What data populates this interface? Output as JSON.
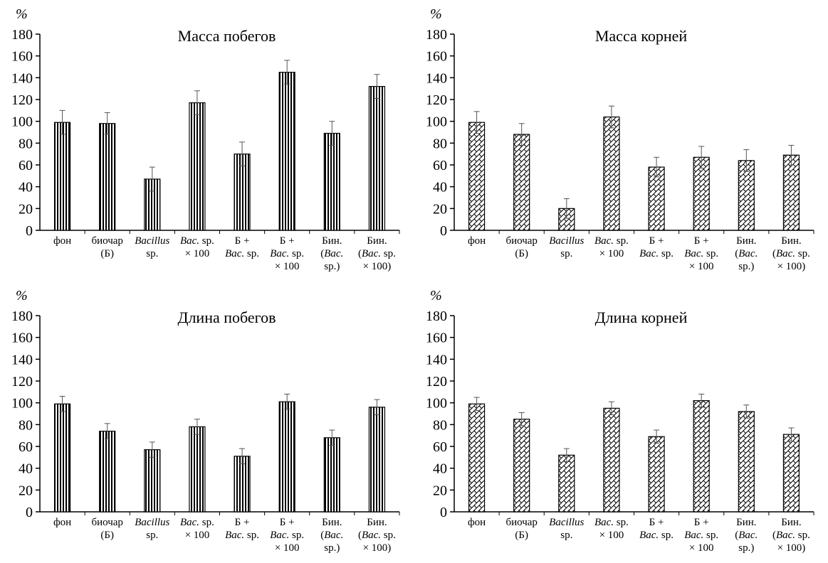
{
  "chart_data": [
    {
      "type": "bar",
      "title": "Масса побегов",
      "y_unit_label": "%",
      "ylim": [
        0,
        180
      ],
      "yticks": [
        0,
        20,
        40,
        60,
        80,
        100,
        120,
        140,
        160,
        180
      ],
      "categories": [
        [
          "фон"
        ],
        [
          "биочар",
          "(Б)"
        ],
        [
          "Bacillus",
          "sp."
        ],
        [
          "Bac. sp.",
          "× 100"
        ],
        [
          "Б +",
          "Bac. sp."
        ],
        [
          "Б +",
          "Bac. sp.",
          "× 100"
        ],
        [
          "Бин.",
          "(Bac.",
          "sp.)"
        ],
        [
          "Бин.",
          "(Bac. sp.",
          "× 100)"
        ]
      ],
      "values": [
        99,
        98,
        47,
        117,
        70,
        145,
        89,
        132
      ],
      "errors": [
        11,
        10,
        11,
        11,
        11,
        11,
        11,
        11
      ],
      "pattern": "vertical-stripes"
    },
    {
      "type": "bar",
      "title": "Масса корней",
      "y_unit_label": "%",
      "ylim": [
        0,
        180
      ],
      "yticks": [
        0,
        20,
        40,
        60,
        80,
        100,
        120,
        140,
        160,
        180
      ],
      "categories": [
        [
          "фон"
        ],
        [
          "биочар",
          "(Б)"
        ],
        [
          "Bacillus",
          "sp."
        ],
        [
          "Bac. sp.",
          "× 100"
        ],
        [
          "Б +",
          "Bac. sp."
        ],
        [
          "Б +",
          "Bac. sp.",
          "× 100"
        ],
        [
          "Бин.",
          "(Bac.",
          "sp.)"
        ],
        [
          "Бин.",
          "(Bac. sp.",
          "× 100)"
        ]
      ],
      "values": [
        99,
        88,
        20,
        104,
        58,
        67,
        64,
        69
      ],
      "errors": [
        10,
        10,
        9,
        10,
        9,
        10,
        10,
        9
      ],
      "pattern": "crosshatch"
    },
    {
      "type": "bar",
      "title": "Длина побегов",
      "y_unit_label": "%",
      "ylim": [
        0,
        180
      ],
      "yticks": [
        0,
        20,
        40,
        60,
        80,
        100,
        120,
        140,
        160,
        180
      ],
      "categories": [
        [
          "фон"
        ],
        [
          "биочар",
          "(Б)"
        ],
        [
          "Bacillus",
          "sp."
        ],
        [
          "Bac. sp.",
          "× 100"
        ],
        [
          "Б +",
          "Bac. sp."
        ],
        [
          "Б +",
          "Bac. sp.",
          "× 100"
        ],
        [
          "Бин.",
          "(Bac.",
          "sp.)"
        ],
        [
          "Бин.",
          "(Bac. sp.",
          "× 100)"
        ]
      ],
      "values": [
        99,
        74,
        57,
        78,
        51,
        101,
        68,
        96
      ],
      "errors": [
        7,
        7,
        7,
        7,
        7,
        7,
        7,
        7
      ],
      "pattern": "vertical-stripes"
    },
    {
      "type": "bar",
      "title": "Длина корней",
      "y_unit_label": "%",
      "ylim": [
        0,
        180
      ],
      "yticks": [
        0,
        20,
        40,
        60,
        80,
        100,
        120,
        140,
        160,
        180
      ],
      "categories": [
        [
          "фон"
        ],
        [
          "биочар",
          "(Б)"
        ],
        [
          "Bacillus",
          "sp."
        ],
        [
          "Bac. sp.",
          "× 100"
        ],
        [
          "Б +",
          "Bac. sp."
        ],
        [
          "Б +",
          "Bac. sp.",
          "× 100"
        ],
        [
          "Бин.",
          "(Bac.",
          "sp.)"
        ],
        [
          "Бин.",
          "(Bac. sp.",
          "× 100)"
        ]
      ],
      "values": [
        99,
        85,
        52,
        95,
        69,
        102,
        92,
        71
      ],
      "errors": [
        6,
        6,
        6,
        6,
        6,
        6,
        6,
        6
      ],
      "pattern": "crosshatch"
    }
  ]
}
